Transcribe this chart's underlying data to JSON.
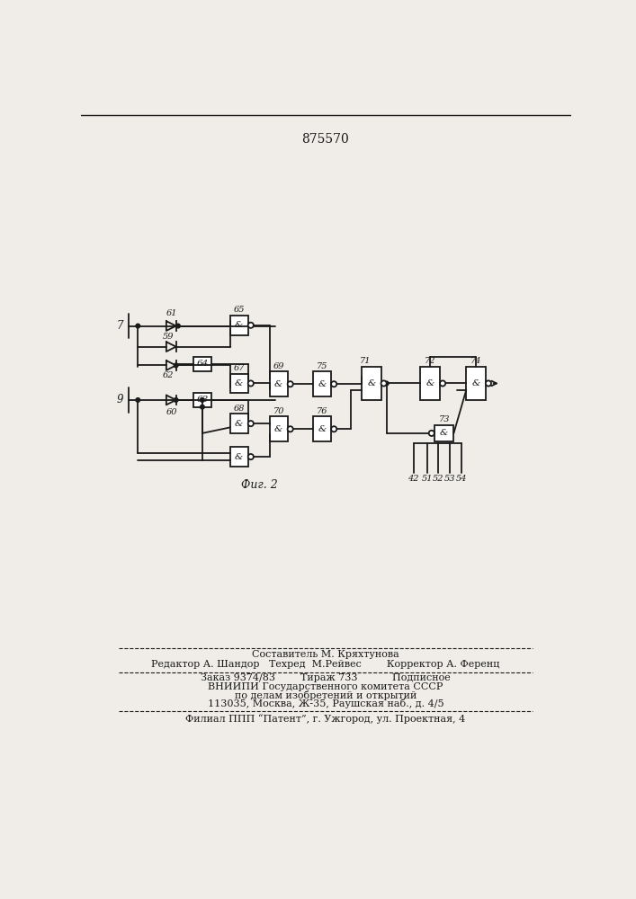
{
  "patent_number": "875570",
  "fig_label": "Фиг. 2",
  "background_color": "#f0ede8",
  "line_color": "#1a1a1a",
  "text_color": "#1a1a1a",
  "footer": {
    "line1": "Составитель М. Кряхтунова",
    "line2": "Редактор А. Шандор   Техред  М.Рейвес        Корректор А. Ференц",
    "line3": "Заказ 9374/83        Тираж 733           Подписное",
    "line4": "ВНИИПИ Государственного комитета СССР",
    "line5": "по делам изобретений и открытий",
    "line6": "113035, Москва, Ж-35, Раушская наб., д. 4/5",
    "line7": "Филиал ППП “Патент”, г. Ужгород, ул. Проектная, 4"
  }
}
